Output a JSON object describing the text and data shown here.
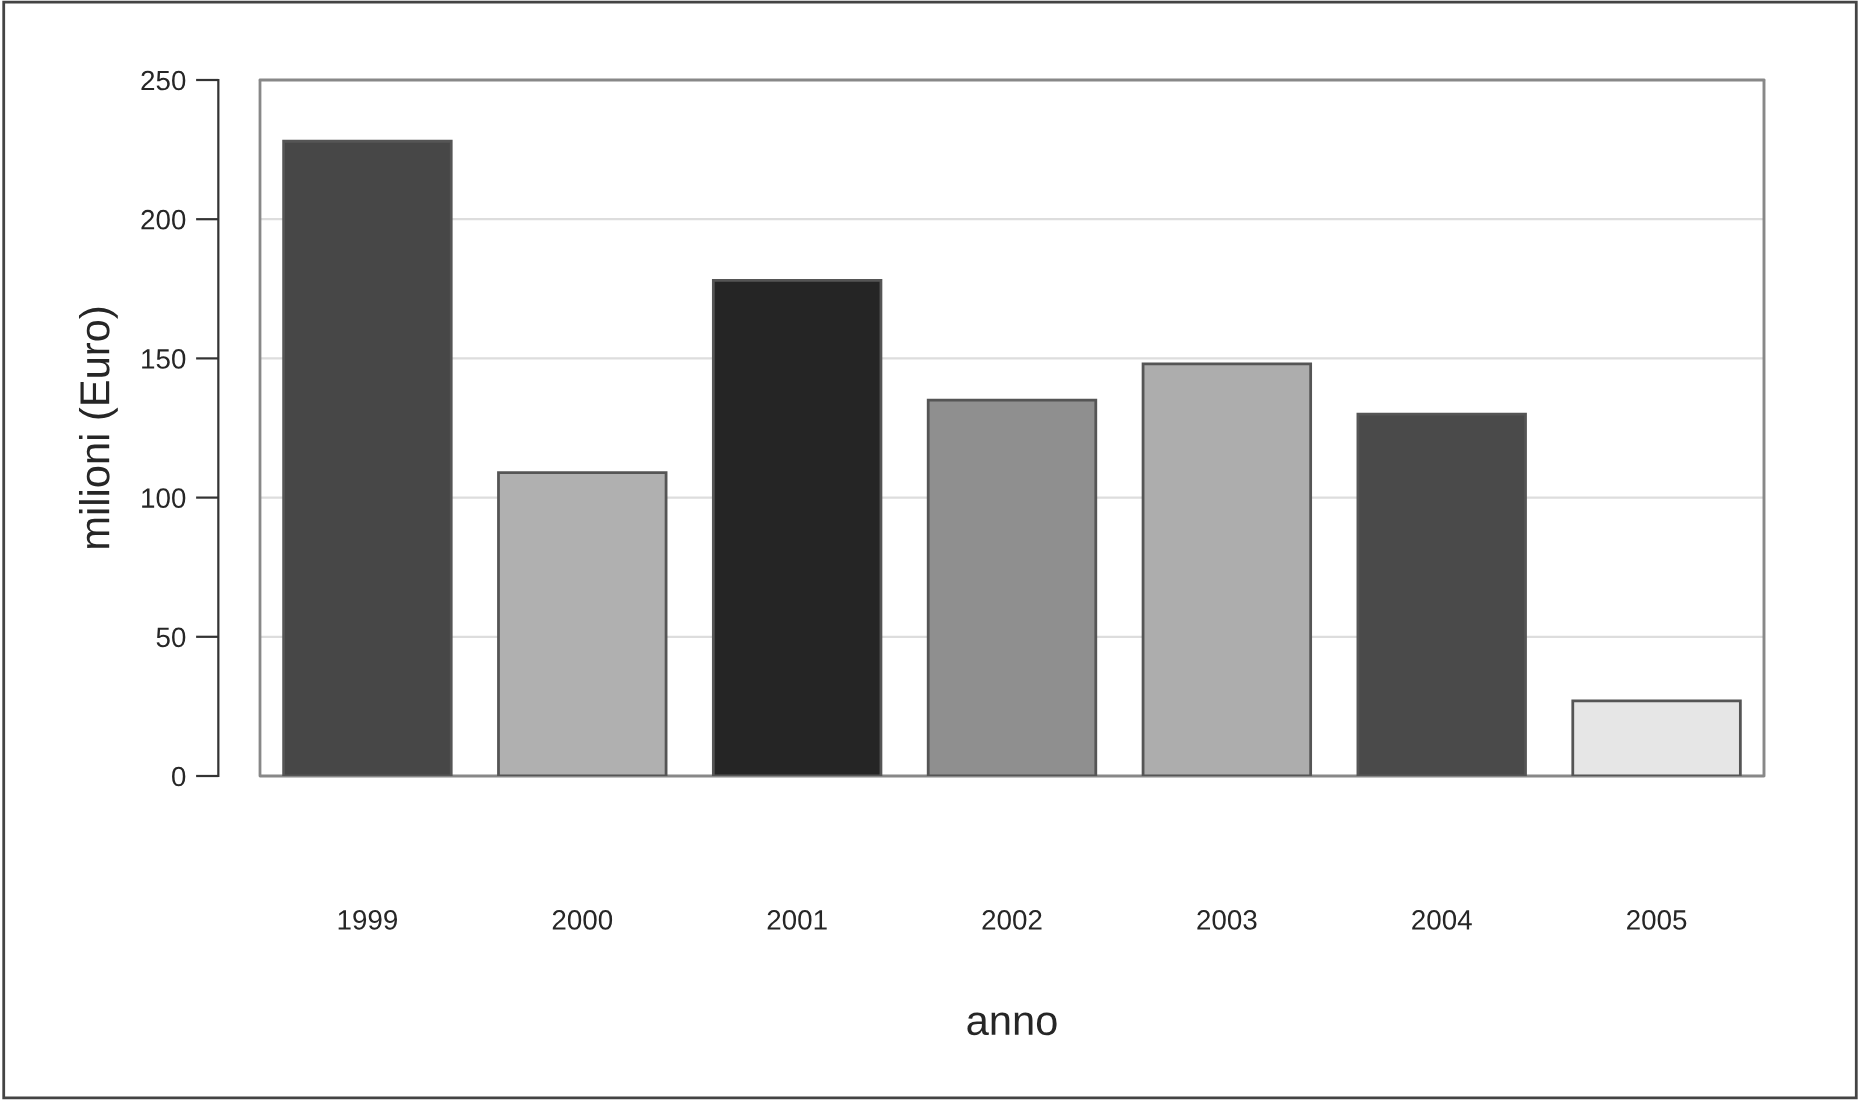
{
  "chart_data": {
    "type": "bar",
    "xlabel": "anno",
    "ylabel": "milioni (Euro)",
    "categories": [
      "1999",
      "2000",
      "2001",
      "2002",
      "2003",
      "2004",
      "2005"
    ],
    "values": [
      228,
      109,
      178,
      135,
      148,
      130,
      27
    ],
    "colors": [
      "#474747",
      "#b0b0b0",
      "#252525",
      "#8f8f8f",
      "#adadad",
      "#4a4a4a",
      "#e6e6e6"
    ],
    "ylim": [
      0,
      250
    ],
    "yticks": [
      0,
      50,
      100,
      150,
      200,
      250
    ],
    "grid": "y"
  }
}
